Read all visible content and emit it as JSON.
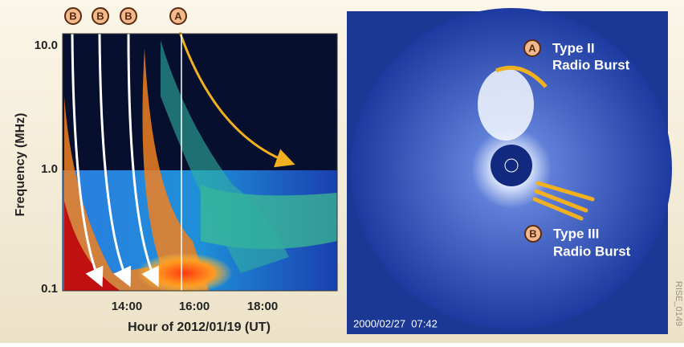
{
  "spectrogram": {
    "y_label": "Frequency (MHz)",
    "y_ticks": [
      "10.0",
      "1.0",
      "0.1"
    ],
    "x_label": "Hour of 2012/01/19 (UT)",
    "x_ticks": [
      "14:00",
      "16:00",
      "18:00"
    ],
    "markers": [
      "B",
      "B",
      "B",
      "A"
    ]
  },
  "coronagraph": {
    "burst_a": {
      "marker": "A",
      "line1": "Type II",
      "line2": "Radio Burst"
    },
    "burst_b": {
      "marker": "B",
      "line1": "Type III",
      "line2": "Radio Burst"
    },
    "timestamp": "2000/02/27  07:42",
    "credit": "RISE_0149"
  }
}
